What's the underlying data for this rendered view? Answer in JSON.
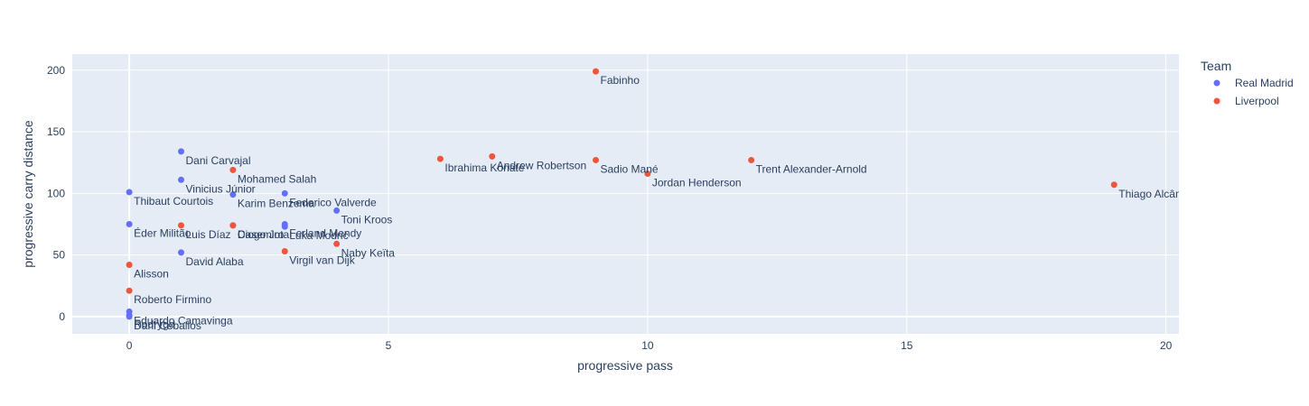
{
  "chart_data": {
    "type": "scatter",
    "xlabel": "progressive pass",
    "ylabel": "progressive carry distance",
    "xlim": [
      -1.1,
      20.25
    ],
    "ylim": [
      -14,
      213
    ],
    "x_ticks": [
      0,
      5,
      10,
      15,
      20
    ],
    "y_ticks": [
      0,
      50,
      100,
      150,
      200
    ],
    "grid": true,
    "legend": {
      "title": "Team",
      "placement": "top-right"
    },
    "series": [
      {
        "name": "Real Madrid",
        "color": "#636efa",
        "points": [
          {
            "label": "Dani Carvajal",
            "x": 1,
            "y": 134
          },
          {
            "label": "Vinicius Júnior",
            "x": 1,
            "y": 111
          },
          {
            "label": "Thibaut Courtois",
            "x": 0,
            "y": 101
          },
          {
            "label": "Karim Benzema",
            "x": 2,
            "y": 99
          },
          {
            "label": "Federico Valverde",
            "x": 3,
            "y": 100
          },
          {
            "label": "Toni Kroos",
            "x": 4,
            "y": 86
          },
          {
            "label": "Éder Militão",
            "x": 0,
            "y": 75
          },
          {
            "label": "Casemiro",
            "x": 2,
            "y": 74
          },
          {
            "label": "Luka Modrić",
            "x": 3,
            "y": 73
          },
          {
            "label": "Ferland Mendy",
            "x": 3,
            "y": 75
          },
          {
            "label": "David Alaba",
            "x": 1,
            "y": 52
          },
          {
            "label": "Eduardo Camavinga",
            "x": 0,
            "y": 4
          },
          {
            "label": "Rodrygo",
            "x": 0,
            "y": 1
          },
          {
            "label": "Dani Ceballos",
            "x": 0,
            "y": 0
          }
        ]
      },
      {
        "name": "Liverpool",
        "color": "#ef553b",
        "points": [
          {
            "label": "Fabinho",
            "x": 9,
            "y": 199
          },
          {
            "label": "Ibrahima Konaté",
            "x": 6,
            "y": 128
          },
          {
            "label": "Andrew Robertson",
            "x": 7,
            "y": 130
          },
          {
            "label": "Sadio Mané",
            "x": 9,
            "y": 127
          },
          {
            "label": "Jordan Henderson",
            "x": 10,
            "y": 116
          },
          {
            "label": "Trent Alexander-Arnold",
            "x": 12,
            "y": 127
          },
          {
            "label": "Thiago Alcântara",
            "x": 19,
            "y": 107
          },
          {
            "label": "Mohamed Salah",
            "x": 2,
            "y": 119
          },
          {
            "label": "Luis Díaz",
            "x": 1,
            "y": 74
          },
          {
            "label": "Diogo Jota",
            "x": 2,
            "y": 74
          },
          {
            "label": "Virgil van Dijk",
            "x": 3,
            "y": 53
          },
          {
            "label": "Naby Keïta",
            "x": 4,
            "y": 59
          },
          {
            "label": "Alisson",
            "x": 0,
            "y": 42
          },
          {
            "label": "Roberto Firmino",
            "x": 0,
            "y": 21
          }
        ]
      }
    ]
  }
}
